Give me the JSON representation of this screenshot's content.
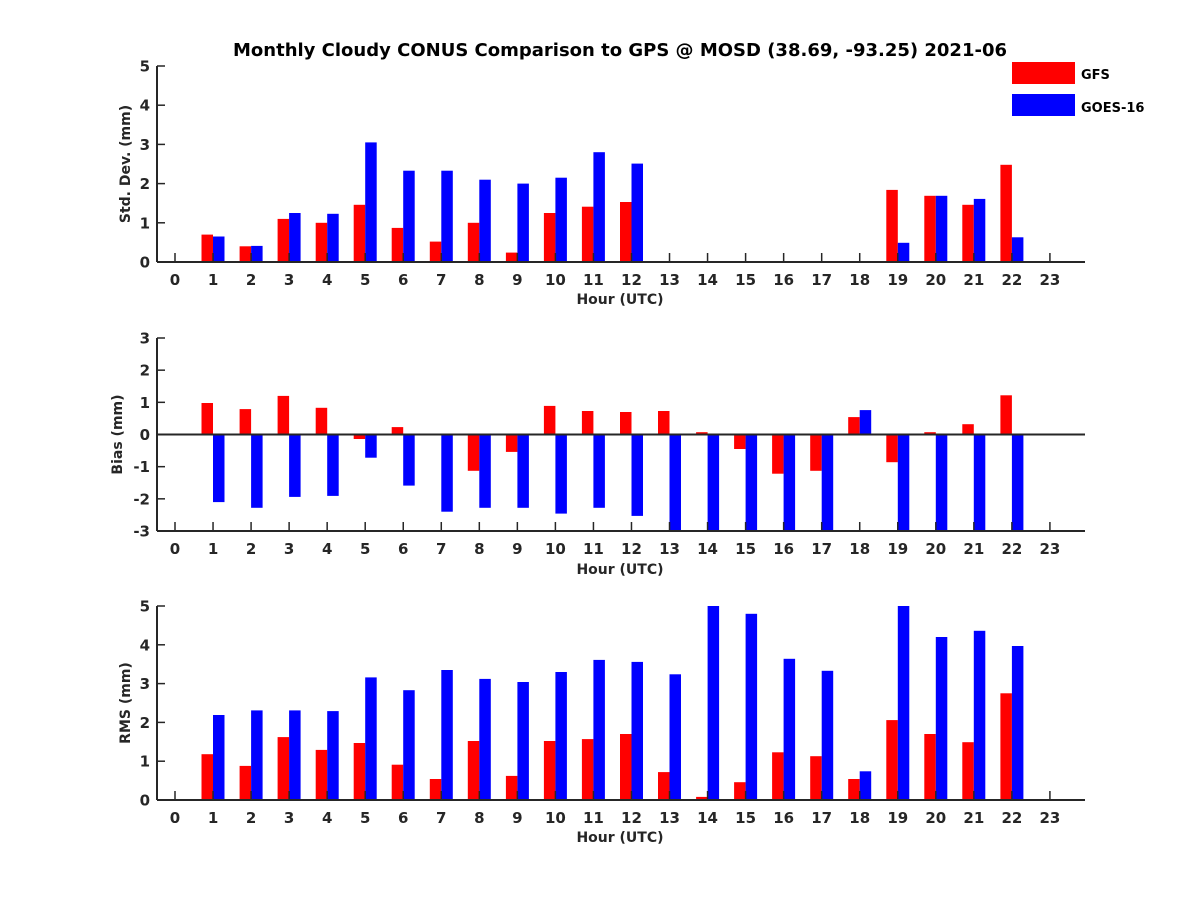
{
  "title": "Monthly Cloudy CONUS Comparison to GPS @ MOSD (38.69, -93.25) 2021-06",
  "legend": {
    "placement": "top-right",
    "entries": [
      {
        "label": "GFS",
        "color": "#ff0000"
      },
      {
        "label": "GOES-16",
        "color": "#0000ff"
      }
    ]
  },
  "chart_data": [
    {
      "type": "bar",
      "title": "Monthly Cloudy CONUS Comparison to GPS @ MOSD (38.69, -93.25) 2021-06",
      "xlabel": "Hour (UTC)",
      "ylabel": "Std. Dev. (mm)",
      "ylim": [
        0,
        5
      ],
      "yticks": [
        0,
        1,
        2,
        3,
        4,
        5
      ],
      "categories": [
        "0",
        "1",
        "2",
        "3",
        "4",
        "5",
        "6",
        "7",
        "8",
        "9",
        "10",
        "11",
        "12",
        "13",
        "14",
        "15",
        "16",
        "17",
        "18",
        "19",
        "20",
        "21",
        "22",
        "23"
      ],
      "series": [
        {
          "name": "GFS",
          "color": "#ff0000",
          "values": [
            null,
            0.7,
            0.4,
            1.1,
            1.0,
            1.46,
            0.87,
            0.52,
            1.0,
            0.24,
            1.25,
            1.41,
            1.53,
            null,
            null,
            null,
            null,
            null,
            null,
            1.84,
            1.69,
            1.46,
            2.48,
            null
          ]
        },
        {
          "name": "GOES-16",
          "color": "#0000ff",
          "values": [
            null,
            0.65,
            0.41,
            1.25,
            1.23,
            3.05,
            2.33,
            2.33,
            2.1,
            2.0,
            2.15,
            2.8,
            2.51,
            null,
            null,
            null,
            null,
            null,
            null,
            0.49,
            1.69,
            1.61,
            0.63,
            null
          ]
        }
      ]
    },
    {
      "type": "bar",
      "title": "",
      "xlabel": "Hour (UTC)",
      "ylabel": "Bias (mm)",
      "ylim": [
        -3,
        3
      ],
      "yticks": [
        -3,
        -2,
        -1,
        0,
        1,
        2,
        3
      ],
      "categories": [
        "0",
        "1",
        "2",
        "3",
        "4",
        "5",
        "6",
        "7",
        "8",
        "9",
        "10",
        "11",
        "12",
        "13",
        "14",
        "15",
        "16",
        "17",
        "18",
        "19",
        "20",
        "21",
        "22",
        "23"
      ],
      "series": [
        {
          "name": "GFS",
          "color": "#ff0000",
          "values": [
            null,
            0.98,
            0.79,
            1.2,
            0.83,
            -0.14,
            0.23,
            -0.03,
            -1.13,
            -0.54,
            0.89,
            0.73,
            0.7,
            0.73,
            0.07,
            -0.45,
            -1.22,
            -1.13,
            0.54,
            -0.86,
            0.07,
            0.32,
            1.22,
            null
          ]
        },
        {
          "name": "GOES-16",
          "color": "#0000ff",
          "values": [
            null,
            -2.1,
            -2.28,
            -1.94,
            -1.91,
            -0.72,
            -1.59,
            -2.4,
            -2.28,
            -2.28,
            -2.46,
            -2.28,
            -2.53,
            -3.0,
            -3.0,
            -3.0,
            -3.0,
            -3.0,
            0.76,
            -3.0,
            -3.0,
            -3.0,
            -3.0,
            null
          ]
        }
      ]
    },
    {
      "type": "bar",
      "title": "",
      "xlabel": "Hour (UTC)",
      "ylabel": "RMS (mm)",
      "ylim": [
        0,
        5
      ],
      "yticks": [
        0,
        1,
        2,
        3,
        4,
        5
      ],
      "categories": [
        "0",
        "1",
        "2",
        "3",
        "4",
        "5",
        "6",
        "7",
        "8",
        "9",
        "10",
        "11",
        "12",
        "13",
        "14",
        "15",
        "16",
        "17",
        "18",
        "19",
        "20",
        "21",
        "22",
        "23"
      ],
      "series": [
        {
          "name": "GFS",
          "color": "#ff0000",
          "values": [
            null,
            1.18,
            0.88,
            1.62,
            1.29,
            1.47,
            0.91,
            0.54,
            1.52,
            0.62,
            1.52,
            1.57,
            1.7,
            0.72,
            0.08,
            0.46,
            1.23,
            1.13,
            0.54,
            2.06,
            1.7,
            1.49,
            2.75,
            null
          ]
        },
        {
          "name": "GOES-16",
          "color": "#0000ff",
          "values": [
            null,
            2.19,
            2.31,
            2.31,
            2.29,
            3.16,
            2.83,
            3.35,
            3.12,
            3.04,
            3.3,
            3.61,
            3.56,
            3.24,
            5.0,
            4.8,
            3.64,
            3.33,
            0.74,
            5.0,
            4.2,
            4.36,
            3.97,
            null
          ]
        }
      ]
    }
  ]
}
